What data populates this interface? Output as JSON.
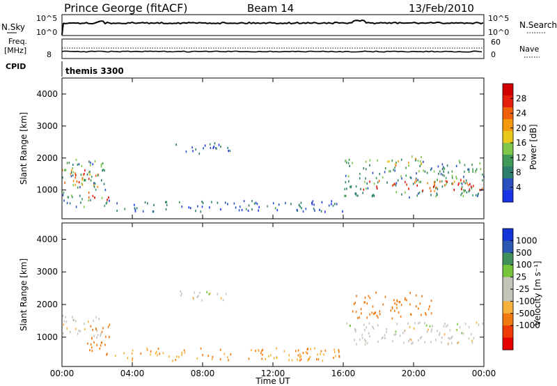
{
  "header": {
    "title": "Prince George (fitACF)",
    "beam": "Beam 14",
    "date": "13/Feb/2010"
  },
  "top_panel": {
    "left_label": "N.Sky",
    "left_ticks": [
      "10^5",
      "10^0"
    ],
    "right_ticks": [
      "10^5",
      "10^0"
    ],
    "right_label": "N.Search"
  },
  "freq_panel": {
    "left_label_1": "Freq.",
    "left_label_2": "[MHz]",
    "left_tick": "8",
    "right_ticks": [
      "60",
      "0"
    ],
    "right_label": "Nave"
  },
  "cpid": {
    "label": "CPID",
    "value": "themis 3300"
  },
  "colors": {
    "power": [
      "#1b33e6",
      "#2c4fc0",
      "#2d7d6c",
      "#3f9957",
      "#7fc64a",
      "#e8c81a",
      "#f39a10",
      "#f0620a",
      "#e61e0e",
      "#d10000"
    ],
    "velocity": [
      "#e60000",
      "#ee3a06",
      "#f07a10",
      "#f7b23c",
      "#c4c4b8",
      "#c4c4b8",
      "#76c43c",
      "#3f8f5a",
      "#2c58b2",
      "#1433d8"
    ]
  },
  "chart_data": [
    {
      "type": "heatmap",
      "name": "Power",
      "ylabel": "Slant Range [km]",
      "ylim": [
        100,
        4500
      ],
      "yticks": [
        1000,
        2000,
        3000,
        4000
      ],
      "xlim": [
        0,
        24
      ],
      "colorbar": {
        "label": "Power [dB]",
        "range": [
          0,
          32
        ],
        "ticks": [
          4,
          8,
          12,
          16,
          20,
          24,
          28
        ]
      },
      "regions": [
        {
          "t0": 0.0,
          "t1": 2.2,
          "r0": 1100,
          "r1": 1700,
          "value": 22
        },
        {
          "t0": 1.4,
          "t1": 2.7,
          "r0": 700,
          "r1": 950,
          "value": 28
        },
        {
          "t0": 0.0,
          "t1": 2.5,
          "r0": 500,
          "r1": 2000,
          "value": 10
        },
        {
          "t0": 2.5,
          "t1": 16.0,
          "r0": 350,
          "r1": 700,
          "value": 6
        },
        {
          "t0": 6.4,
          "t1": 9.6,
          "r0": 2150,
          "r1": 2500,
          "value": 6
        },
        {
          "t0": 16.0,
          "t1": 24.0,
          "r0": 800,
          "r1": 2000,
          "value": 10
        },
        {
          "t0": 17.0,
          "t1": 24.0,
          "r0": 1000,
          "r1": 1350,
          "value": 26
        },
        {
          "t0": 18.5,
          "t1": 20.5,
          "r0": 1800,
          "r1": 2100,
          "value": 18
        }
      ]
    },
    {
      "type": "heatmap",
      "name": "Velocity",
      "ylabel": "Slant Range [km]",
      "xlabel": "Time UT",
      "ylim": [
        100,
        4500
      ],
      "yticks": [
        1000,
        2000,
        3000,
        4000
      ],
      "xlim": [
        0,
        24
      ],
      "xticks": [
        "00:00",
        "04:00",
        "08:00",
        "12:00",
        "16:00",
        "20:00",
        "00:00"
      ],
      "colorbar": {
        "label": "Velocity [m s⁻¹]",
        "ticks": [
          "1000",
          "500",
          "100",
          "25",
          "-25",
          "-100",
          "-500",
          "-1000"
        ]
      },
      "regions": [
        {
          "t0": 0.0,
          "t1": 2.2,
          "r0": 1000,
          "r1": 1700,
          "value": -10
        },
        {
          "t0": 1.4,
          "t1": 2.7,
          "r0": 600,
          "r1": 1600,
          "value": -300
        },
        {
          "t0": 2.5,
          "t1": 16.0,
          "r0": 300,
          "r1": 700,
          "value": -100
        },
        {
          "t0": 6.4,
          "t1": 9.6,
          "r0": 2150,
          "r1": 2450,
          "value": 0
        },
        {
          "t0": 16.0,
          "t1": 24.0,
          "r0": 800,
          "r1": 1500,
          "value": 0
        },
        {
          "t0": 16.5,
          "t1": 21.0,
          "r0": 1600,
          "r1": 2400,
          "value": -400
        }
      ]
    }
  ]
}
